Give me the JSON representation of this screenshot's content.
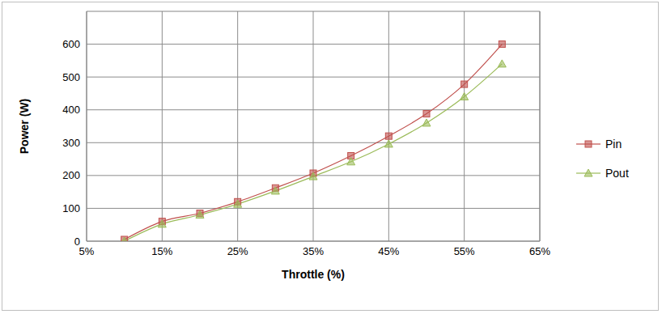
{
  "chart_data": {
    "type": "line",
    "x_label": "Throttle (%)",
    "y_label": "Power (W)",
    "x": [
      10,
      15,
      20,
      25,
      30,
      35,
      40,
      45,
      50,
      55,
      60
    ],
    "series": [
      {
        "name": "Pin",
        "color": "#c0504d",
        "marker": "square",
        "values": [
          5,
          60,
          85,
          120,
          162,
          207,
          260,
          320,
          388,
          478,
          600
        ]
      },
      {
        "name": "Pout",
        "color": "#9bbb59",
        "marker": "triangle",
        "values": [
          0,
          52,
          80,
          113,
          153,
          197,
          242,
          296,
          360,
          440,
          540
        ]
      }
    ],
    "xlim": [
      5,
      65
    ],
    "xticks": [
      {
        "value": 5,
        "label": "5%"
      },
      {
        "value": 15,
        "label": "15%"
      },
      {
        "value": 25,
        "label": "25%"
      },
      {
        "value": 35,
        "label": "35%"
      },
      {
        "value": 45,
        "label": "45%"
      },
      {
        "value": 55,
        "label": "55%"
      },
      {
        "value": 65,
        "label": "65%"
      }
    ],
    "ylim": [
      0,
      700
    ],
    "yticks": [
      0,
      100,
      200,
      300,
      400,
      500,
      600
    ],
    "grid": true,
    "legend": "right"
  }
}
